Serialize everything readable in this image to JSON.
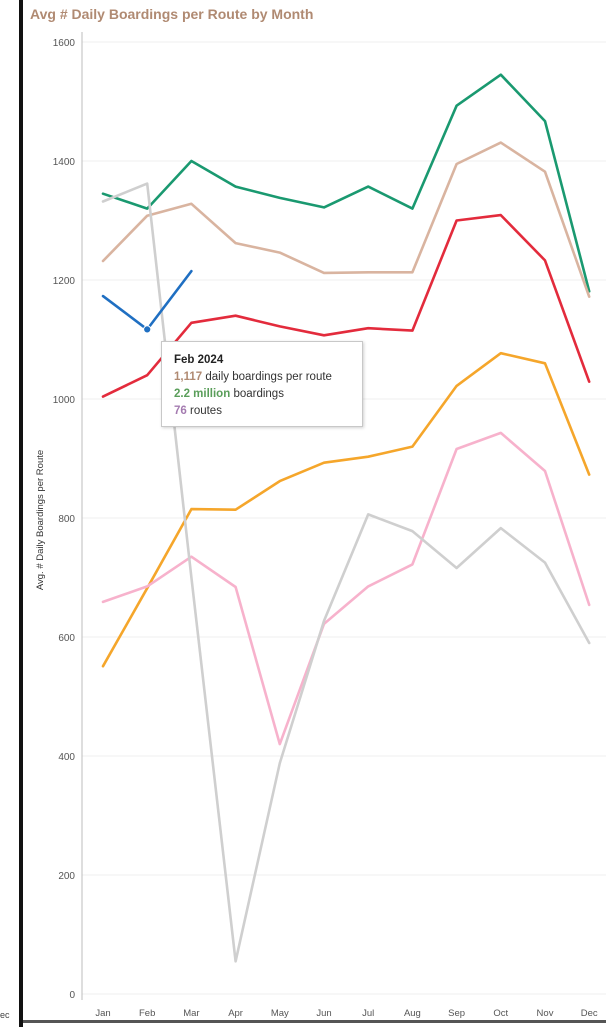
{
  "left_panel": {
    "tick_fragment": "ec"
  },
  "chart_data": {
    "type": "line",
    "title": "Avg # Daily Boardings per Route by Month",
    "ylabel": "Avg. # Daily Boardings per Route",
    "xlabel": "",
    "categories": [
      "Jan",
      "Feb",
      "Mar",
      "Apr",
      "May",
      "Jun",
      "Jul",
      "Aug",
      "Sep",
      "Oct",
      "Nov",
      "Dec"
    ],
    "ylim": [
      0,
      1600
    ],
    "yticks": [
      0,
      200,
      400,
      600,
      800,
      1000,
      1200,
      1400,
      1600
    ],
    "grid": true,
    "series": [
      {
        "color": "#1a9970",
        "values": [
          1345,
          1320,
          1400,
          1357,
          1338,
          1322,
          1357,
          1320,
          1493,
          1545,
          1467,
          1181
        ]
      },
      {
        "color": "#d9b4a0",
        "values": [
          1232,
          1308,
          1328,
          1262,
          1246,
          1212,
          1213,
          1213,
          1395,
          1431,
          1382,
          1172
        ]
      },
      {
        "color": "#e32b3c",
        "values": [
          1004,
          1040,
          1128,
          1140,
          1122,
          1107,
          1119,
          1115,
          1300,
          1309,
          1233,
          1029
        ]
      },
      {
        "color": "#f5a62b",
        "values": [
          551,
          682,
          815,
          814,
          862,
          893,
          903,
          920,
          1022,
          1077,
          1060,
          873
        ]
      },
      {
        "color": "#f7b2cc",
        "values": [
          659,
          685,
          735,
          684,
          420,
          622,
          685,
          722,
          916,
          943,
          879,
          654
        ]
      },
      {
        "color": "#cfcfcf",
        "values": [
          1332,
          1362,
          700,
          55,
          388,
          627,
          806,
          778,
          716,
          783,
          725,
          590
        ]
      },
      {
        "color": "#1f6fc2",
        "values": [
          1173,
          1117,
          1215,
          null,
          null,
          null,
          null,
          null,
          null,
          null,
          null,
          null
        ]
      }
    ],
    "highlight": {
      "series_index": 6,
      "category": "Feb",
      "value": 1117
    },
    "tooltip": {
      "title": "Feb 2024",
      "line1_value": "1,117",
      "line1_text": " daily boardings per route",
      "line2_value": "2.2 million",
      "line2_text": " boardings",
      "line3_value": "76",
      "line3_text": " routes",
      "line1_color": "#b08a72",
      "line2_color": "#5a9e5a",
      "line3_color": "#a47bb0"
    }
  }
}
